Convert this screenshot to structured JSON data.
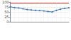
{
  "chart_data": {
    "type": "line",
    "categories": [
      null,
      null,
      null,
      null,
      null,
      null,
      null,
      null,
      null,
      null,
      null,
      null,
      null,
      null,
      null
    ],
    "series": [
      {
        "color": "#3a78b8",
        "marker": "circle",
        "line_style": "solid",
        "values": [
          76,
          72,
          70,
          66,
          62,
          60,
          58,
          57,
          55,
          52,
          50,
          58,
          64,
          68,
          71
        ]
      },
      {
        "color": "#e0312b",
        "marker": "none",
        "line_style": "solid",
        "values": [
          95,
          95,
          95,
          95,
          95,
          95,
          95,
          95,
          95,
          95,
          95,
          95,
          95,
          95,
          95
        ]
      }
    ],
    "ylim": [
      0,
      100
    ],
    "yticks": [
      0,
      25,
      50,
      75,
      100
    ],
    "grid": true,
    "tick_labels": "y"
  }
}
